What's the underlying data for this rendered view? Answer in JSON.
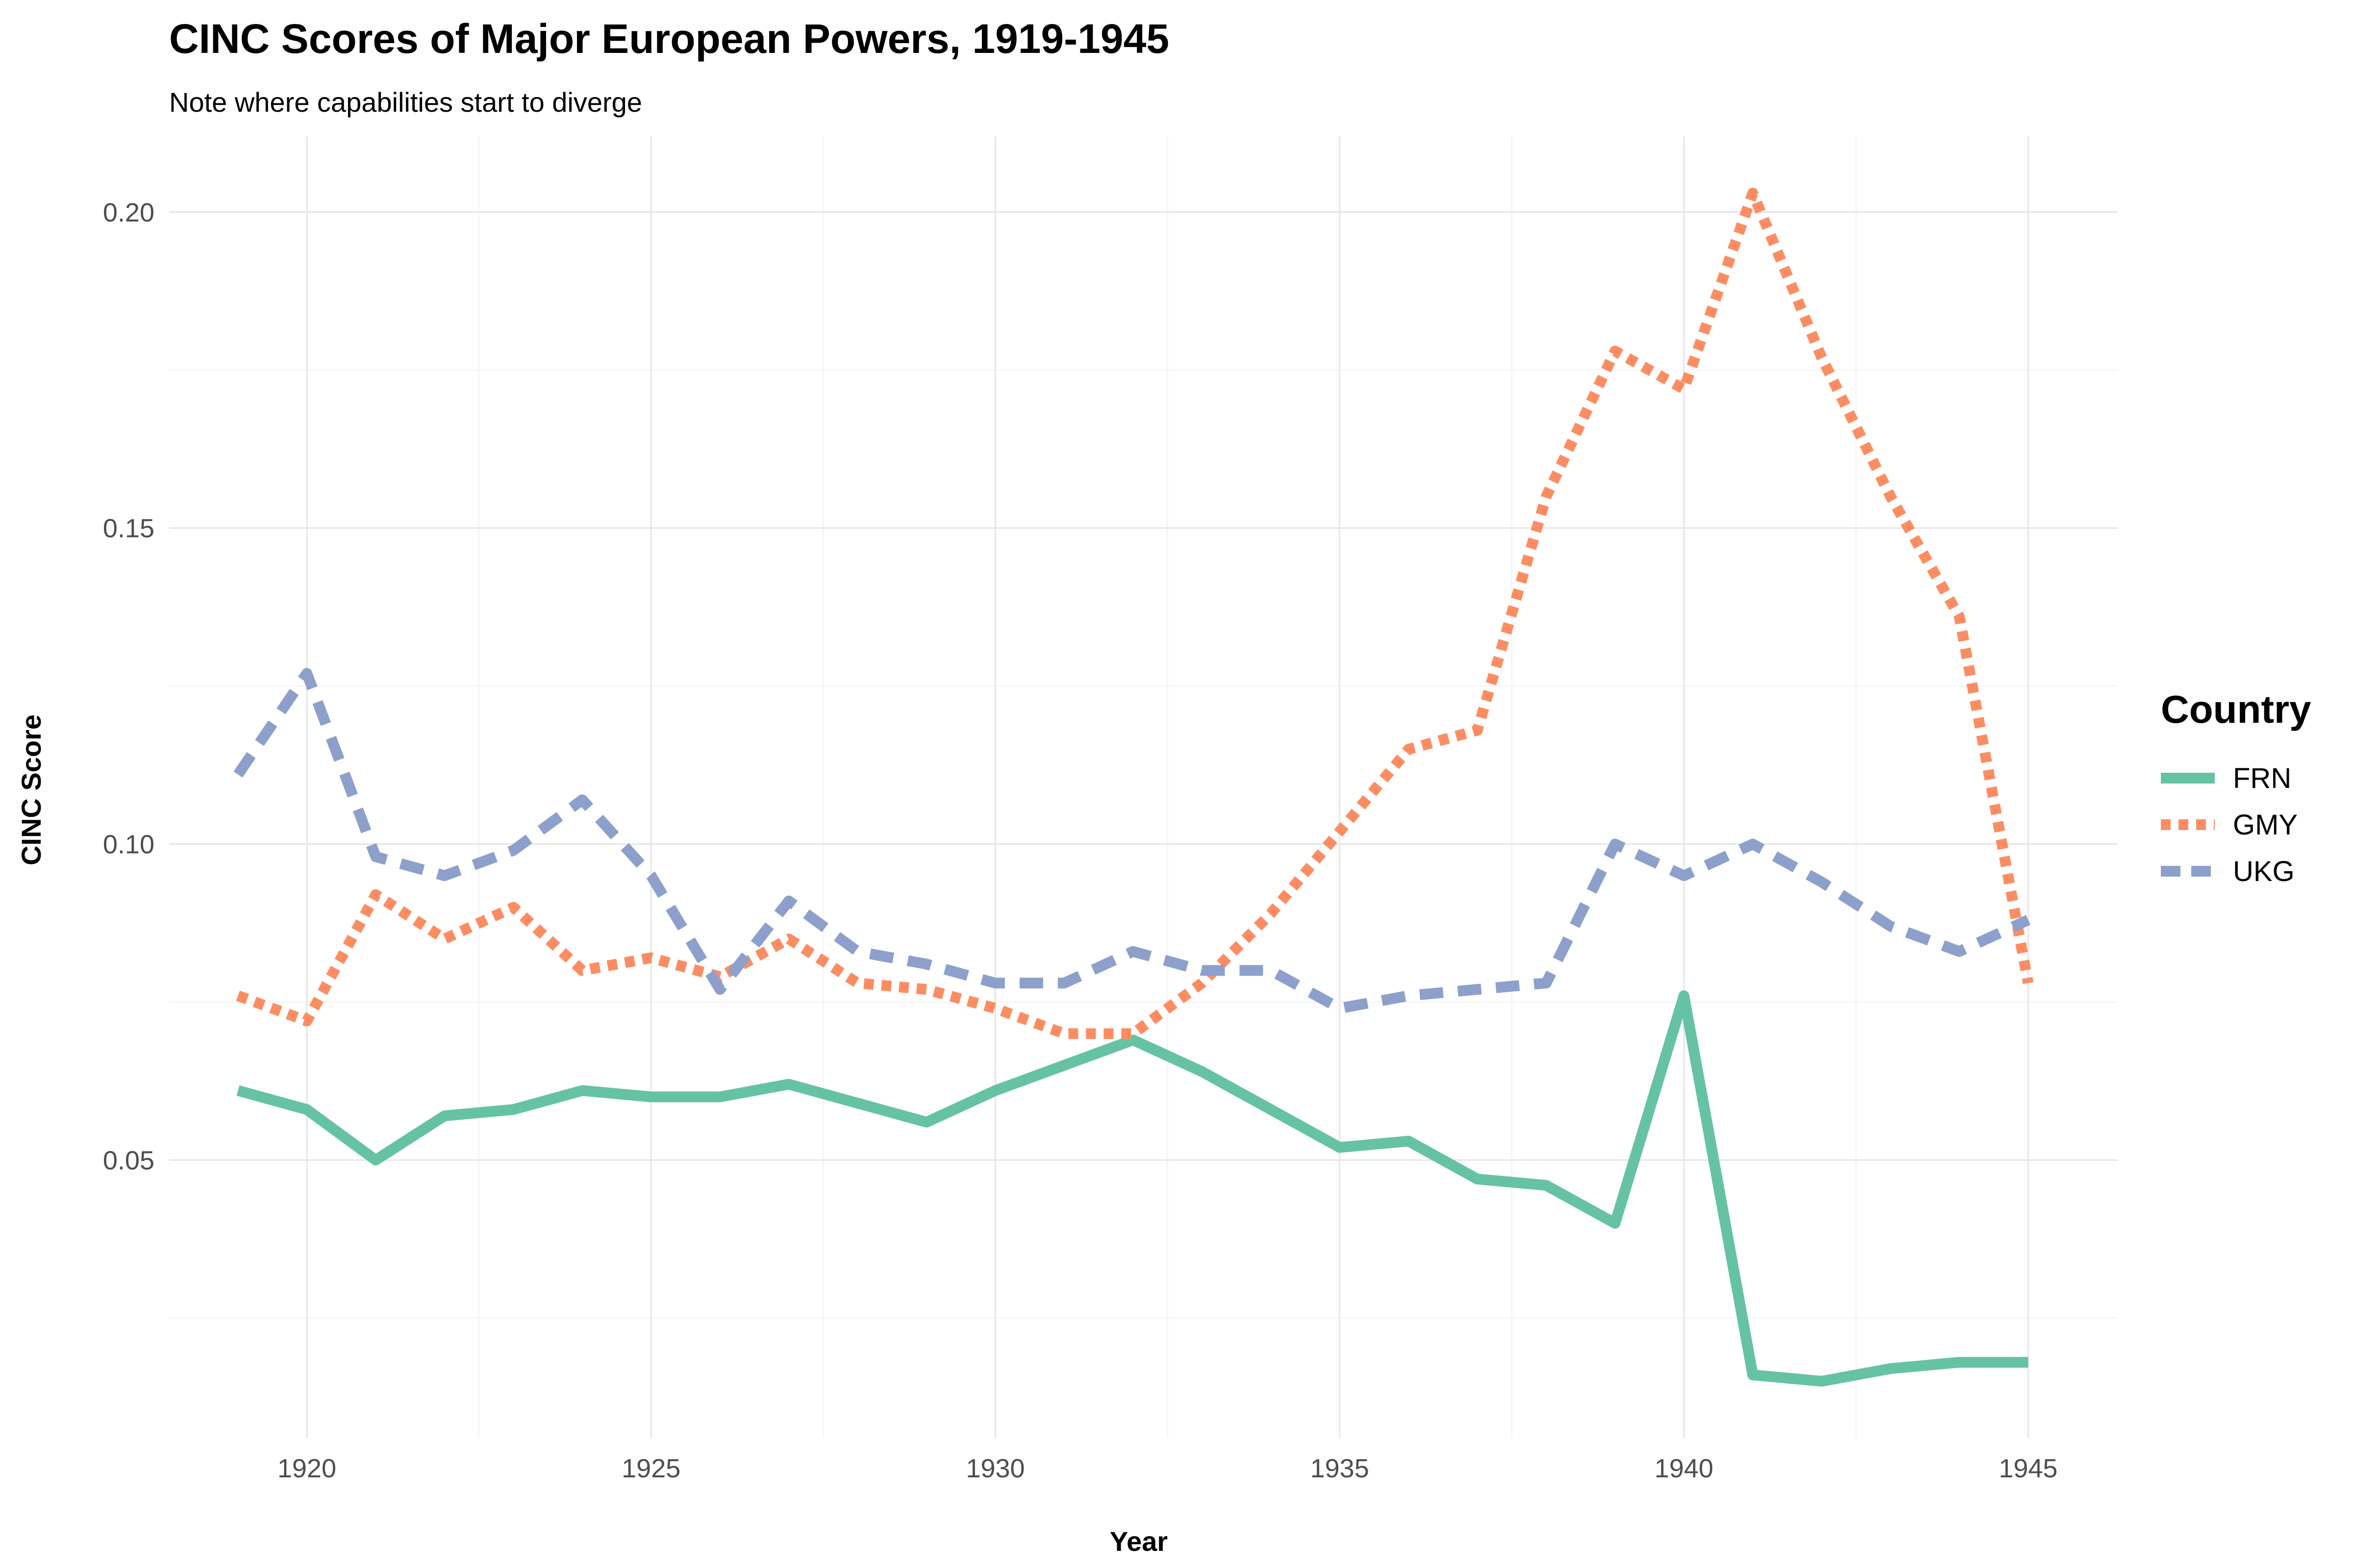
{
  "title": "CINC Scores of Major European Powers, 1919-1945",
  "subtitle": "Note where capabilities start to diverge",
  "legend_title": "Country",
  "chart_data": {
    "type": "line",
    "title": "CINC Scores of Major European Powers, 1919-1945",
    "subtitle": "Note where capabilities start to diverge",
    "xlabel": "Year",
    "ylabel": "CINC Score",
    "x": [
      1919,
      1920,
      1921,
      1922,
      1923,
      1924,
      1925,
      1926,
      1927,
      1928,
      1929,
      1930,
      1931,
      1932,
      1933,
      1934,
      1935,
      1936,
      1937,
      1938,
      1939,
      1940,
      1941,
      1942,
      1943,
      1944,
      1945
    ],
    "xlim": [
      1918.0,
      1946.3
    ],
    "ylim": [
      0.006,
      0.212
    ],
    "x_ticks": [
      1920,
      1925,
      1930,
      1935,
      1940,
      1945
    ],
    "x_tick_labels": [
      "1920",
      "1925",
      "1930",
      "1935",
      "1940",
      "1945"
    ],
    "y_ticks": [
      0.05,
      0.1,
      0.15,
      0.2
    ],
    "y_tick_labels": [
      "0.05",
      "0.10",
      "0.15",
      "0.20"
    ],
    "grid": true,
    "legend_position": "right",
    "series": [
      {
        "name": "FRN",
        "color": "#66c2a5",
        "dash": "solid",
        "values": [
          0.061,
          0.058,
          0.05,
          0.057,
          0.058,
          0.061,
          0.06,
          0.06,
          0.062,
          0.059,
          0.056,
          0.061,
          0.065,
          0.069,
          0.064,
          0.058,
          0.052,
          0.053,
          0.047,
          0.046,
          0.04,
          0.076,
          0.016,
          0.015,
          0.017,
          0.018,
          0.018
        ]
      },
      {
        "name": "GMY",
        "color": "#fc8d62",
        "dash": "dotted",
        "values": [
          0.076,
          0.072,
          0.092,
          0.085,
          0.09,
          0.08,
          0.082,
          0.079,
          0.085,
          0.078,
          0.077,
          0.074,
          0.07,
          0.07,
          0.078,
          0.089,
          0.102,
          0.115,
          0.118,
          0.155,
          0.178,
          0.172,
          0.203,
          0.177,
          0.155,
          0.136,
          0.078
        ]
      },
      {
        "name": "UKG",
        "color": "#8da0cb",
        "dash": "dashed",
        "values": [
          0.111,
          0.127,
          0.098,
          0.095,
          0.099,
          0.107,
          0.095,
          0.077,
          0.091,
          0.083,
          0.081,
          0.078,
          0.078,
          0.083,
          0.08,
          0.08,
          0.074,
          0.076,
          0.077,
          0.078,
          0.1,
          0.095,
          0.1,
          0.094,
          0.087,
          0.083,
          0.088
        ]
      }
    ]
  }
}
